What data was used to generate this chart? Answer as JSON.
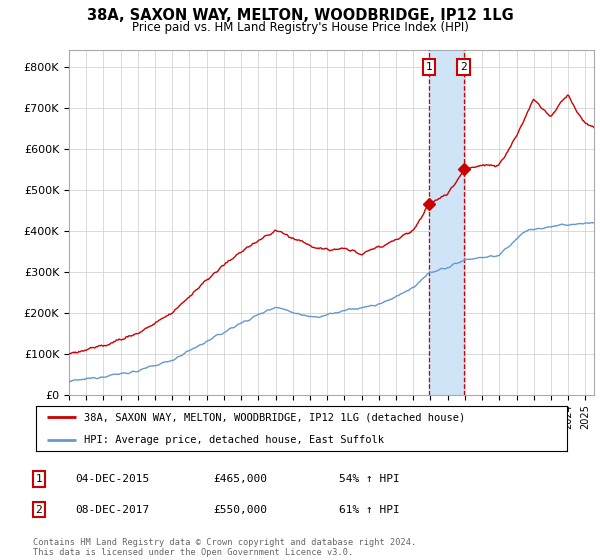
{
  "title": "38A, SAXON WAY, MELTON, WOODBRIDGE, IP12 1LG",
  "subtitle": "Price paid vs. HM Land Registry's House Price Index (HPI)",
  "ylabel_ticks": [
    "£0",
    "£100K",
    "£200K",
    "£300K",
    "£400K",
    "£500K",
    "£600K",
    "£700K",
    "£800K"
  ],
  "ylim": [
    0,
    840000
  ],
  "xlim_start": 1995.0,
  "xlim_end": 2025.5,
  "transaction1_date": 2015.92,
  "transaction1_price": 465000,
  "transaction2_date": 2017.92,
  "transaction2_price": 550000,
  "red_color": "#cc0000",
  "blue_color": "#6699cc",
  "shading_color": "#d0e4f7",
  "legend_label1": "38A, SAXON WAY, MELTON, WOODBRIDGE, IP12 1LG (detached house)",
  "legend_label2": "HPI: Average price, detached house, East Suffolk",
  "table_row1": [
    "1",
    "04-DEC-2015",
    "£465,000",
    "54% ↑ HPI"
  ],
  "table_row2": [
    "2",
    "08-DEC-2017",
    "£550,000",
    "61% ↑ HPI"
  ],
  "footer": "Contains HM Land Registry data © Crown copyright and database right 2024.\nThis data is licensed under the Open Government Licence v3.0.",
  "hpi_keypoints": [
    [
      1995.0,
      32000
    ],
    [
      1997.0,
      45000
    ],
    [
      1999.0,
      58000
    ],
    [
      2001.0,
      85000
    ],
    [
      2003.0,
      130000
    ],
    [
      2005.0,
      175000
    ],
    [
      2007.0,
      215000
    ],
    [
      2008.5,
      195000
    ],
    [
      2009.5,
      190000
    ],
    [
      2011.0,
      205000
    ],
    [
      2013.0,
      220000
    ],
    [
      2015.0,
      260000
    ],
    [
      2016.0,
      300000
    ],
    [
      2017.0,
      310000
    ],
    [
      2018.0,
      330000
    ],
    [
      2019.0,
      335000
    ],
    [
      2020.0,
      340000
    ],
    [
      2021.5,
      400000
    ],
    [
      2023.0,
      410000
    ],
    [
      2024.0,
      415000
    ],
    [
      2025.5,
      420000
    ]
  ],
  "red_keypoints": [
    [
      1995.0,
      100000
    ],
    [
      1997.0,
      120000
    ],
    [
      1999.0,
      150000
    ],
    [
      2001.0,
      200000
    ],
    [
      2003.0,
      280000
    ],
    [
      2005.0,
      350000
    ],
    [
      2007.0,
      400000
    ],
    [
      2008.5,
      375000
    ],
    [
      2009.5,
      355000
    ],
    [
      2011.0,
      355000
    ],
    [
      2012.0,
      345000
    ],
    [
      2013.0,
      360000
    ],
    [
      2014.0,
      380000
    ],
    [
      2015.0,
      400000
    ],
    [
      2015.92,
      465000
    ],
    [
      2017.0,
      490000
    ],
    [
      2017.92,
      550000
    ],
    [
      2019.0,
      560000
    ],
    [
      2020.0,
      560000
    ],
    [
      2021.0,
      630000
    ],
    [
      2022.0,
      720000
    ],
    [
      2022.5,
      700000
    ],
    [
      2023.0,
      680000
    ],
    [
      2023.5,
      710000
    ],
    [
      2024.0,
      735000
    ],
    [
      2024.5,
      690000
    ],
    [
      2025.0,
      665000
    ],
    [
      2025.5,
      650000
    ]
  ]
}
